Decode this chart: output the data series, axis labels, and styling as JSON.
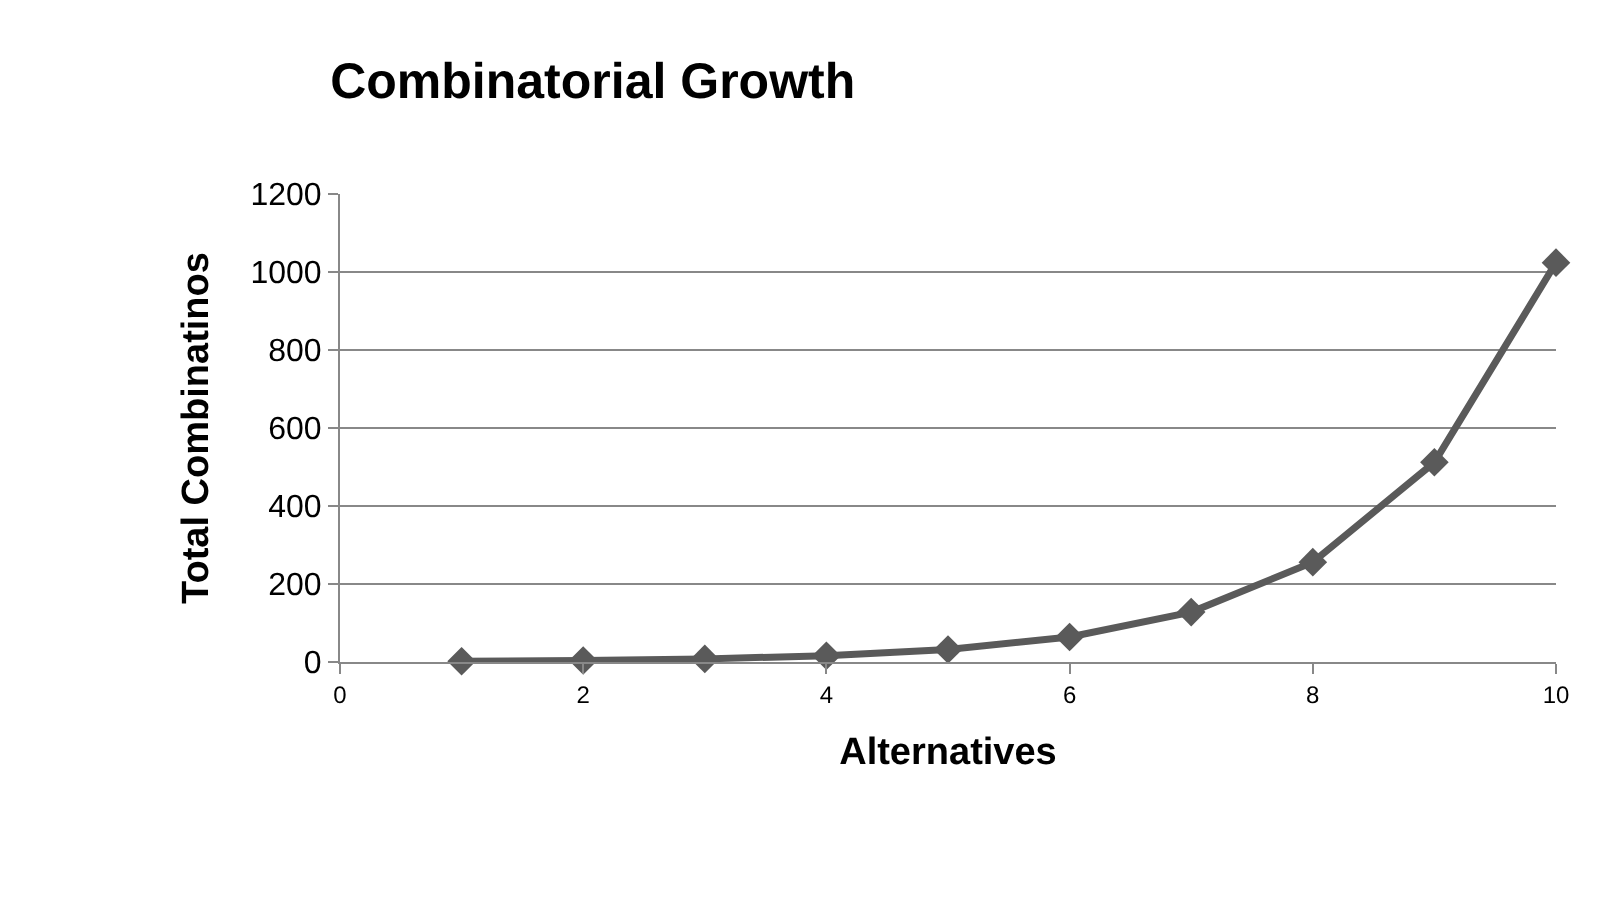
{
  "chart_data": {
    "type": "line",
    "title": "Combinatorial Growth",
    "xlabel": "Alternatives",
    "ylabel": "Total Combinatinos",
    "x": [
      1,
      2,
      3,
      4,
      5,
      6,
      7,
      8,
      9,
      10
    ],
    "series": [
      {
        "color": "#5a5a5a",
        "values": [
          2,
          4,
          8,
          16,
          32,
          64,
          128,
          256,
          512,
          1024
        ]
      }
    ],
    "xlim": [
      0,
      10
    ],
    "xticks": [
      0,
      2,
      4,
      6,
      8,
      10
    ],
    "ylim": [
      0,
      1200
    ],
    "yticks": [
      0,
      200,
      400,
      600,
      800,
      1000,
      1200
    ],
    "grid": "y",
    "marker": "diamond",
    "line_style": "solid"
  }
}
